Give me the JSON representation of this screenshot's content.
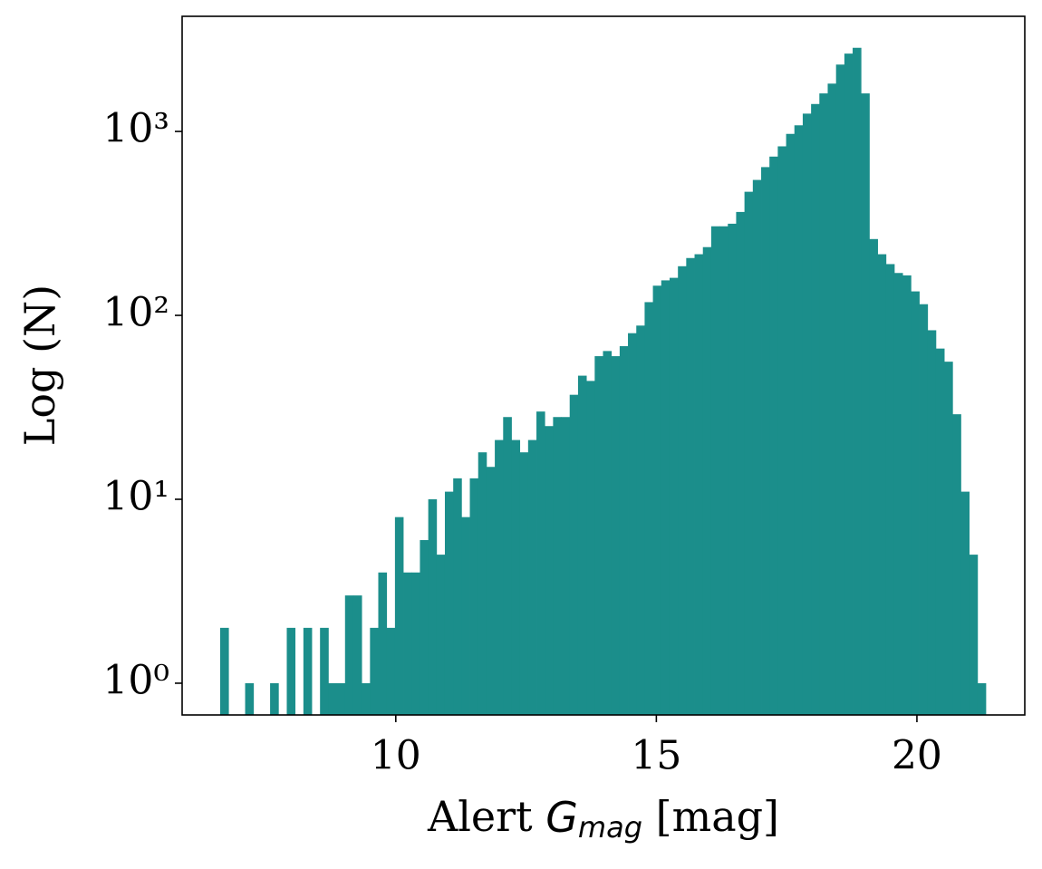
{
  "chart_data": {
    "type": "histogram",
    "x_label": {
      "prefix": "Alert ",
      "symbol": "G",
      "subscript": "mag",
      "suffix": " [mag]"
    },
    "y_label": "Log (N)",
    "color": "#1b8e8b",
    "log_y": true,
    "bins": [
      6.63,
      6.79,
      6.949,
      7.109,
      7.269,
      7.429,
      7.588,
      7.748,
      7.908,
      8.067,
      8.227,
      8.387,
      8.546,
      8.706,
      8.866,
      9.026,
      9.185,
      9.345,
      9.505,
      9.664,
      9.824,
      9.984,
      10.143,
      10.303,
      10.463,
      10.623,
      10.782,
      10.942,
      11.102,
      11.261,
      11.421,
      11.581,
      11.74,
      11.9,
      12.06,
      12.22,
      12.379,
      12.539,
      12.699,
      12.858,
      13.018,
      13.178,
      13.337,
      13.497,
      13.657,
      13.817,
      13.976,
      14.136,
      14.296,
      14.455,
      14.615,
      14.775,
      14.934,
      15.094,
      15.254,
      15.414,
      15.573,
      15.733,
      15.893,
      16.052,
      16.212,
      16.372,
      16.531,
      16.691,
      16.851,
      17.011,
      17.17,
      17.33,
      17.49,
      17.649,
      17.809,
      17.969,
      18.128,
      18.288,
      18.448,
      18.608,
      18.767,
      18.927,
      19.087,
      19.246,
      19.406,
      19.566,
      19.725,
      19.885,
      20.045,
      20.205,
      20.364,
      20.524,
      20.684,
      20.843,
      21.003,
      21.163,
      21.322
    ],
    "values": [
      2,
      0,
      0,
      1,
      0,
      0,
      1,
      0,
      2,
      0,
      2,
      0,
      2,
      1,
      1,
      3,
      3,
      1,
      2,
      4,
      2,
      8,
      4,
      4,
      6,
      10,
      5,
      11,
      13,
      8,
      13,
      18,
      15,
      21,
      28,
      21,
      18,
      21,
      30,
      25,
      28,
      28,
      37,
      47,
      44,
      60,
      64,
      60,
      68,
      80,
      88,
      118,
      145,
      155,
      160,
      185,
      205,
      215,
      235,
      305,
      305,
      315,
      365,
      470,
      545,
      640,
      730,
      830,
      970,
      1080,
      1250,
      1410,
      1610,
      1820,
      2310,
      2650,
      2850,
      1610,
      260,
      215,
      190,
      170,
      165,
      135,
      115,
      83,
      66,
      56,
      29,
      11,
      5,
      1
    ],
    "xlim": [
      5.9,
      22.07
    ],
    "ylim": [
      0.672,
      4227
    ],
    "xticks": [
      10,
      15,
      20
    ],
    "yticks": [
      {
        "value": 1,
        "label": "10⁰"
      },
      {
        "value": 10,
        "label": "10¹"
      },
      {
        "value": 100,
        "label": "10²"
      },
      {
        "value": 1000,
        "label": "10³"
      }
    ]
  }
}
